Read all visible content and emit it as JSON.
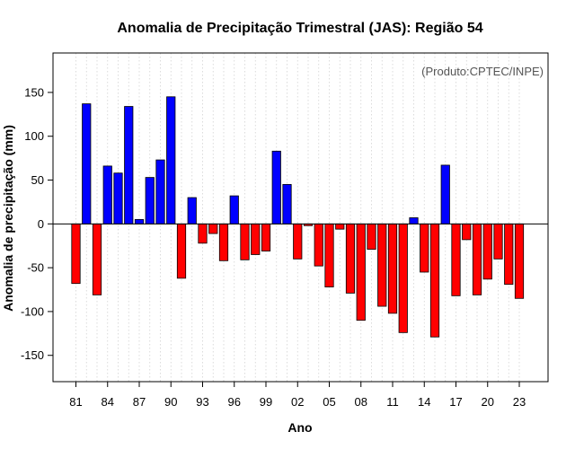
{
  "chart_data": {
    "type": "bar",
    "title": "Anomalia de Precipitação Trimestral (JAS): Região 54",
    "xlabel": "Ano",
    "ylabel": "Anomalia de precipitação (mm)",
    "credit": "(Produto:CPTEC/INPE)",
    "ylim": [
      -180,
      195
    ],
    "yticks": [
      -150,
      -100,
      -50,
      0,
      50,
      100,
      150
    ],
    "xtick_labels": [
      "81",
      "84",
      "87",
      "90",
      "93",
      "96",
      "99",
      "02",
      "05",
      "08",
      "11",
      "14",
      "17",
      "20",
      "23"
    ],
    "grid": "vertical dotted",
    "colors": {
      "positive": "#0000ff",
      "negative": "#ff0000",
      "outline": "#000000"
    },
    "years": [
      1981,
      1982,
      1983,
      1984,
      1985,
      1986,
      1987,
      1988,
      1989,
      1990,
      1991,
      1992,
      1993,
      1994,
      1995,
      1996,
      1997,
      1998,
      1999,
      2000,
      2001,
      2002,
      2003,
      2004,
      2005,
      2006,
      2007,
      2008,
      2009,
      2010,
      2011,
      2012,
      2013,
      2014,
      2015,
      2016,
      2017,
      2018,
      2019,
      2020,
      2021,
      2022,
      2023
    ],
    "values": [
      -68,
      137,
      -81,
      66,
      58,
      134,
      5,
      53,
      73,
      145,
      -62,
      30,
      -22,
      -11,
      -42,
      32,
      -41,
      -35,
      -31,
      83,
      45,
      -40,
      -2,
      -48,
      -72,
      -6,
      -79,
      -110,
      -29,
      -94,
      -102,
      -124,
      7,
      -55,
      -129,
      67,
      -82,
      -18,
      -81,
      -63,
      -40,
      -69,
      -85
    ]
  }
}
